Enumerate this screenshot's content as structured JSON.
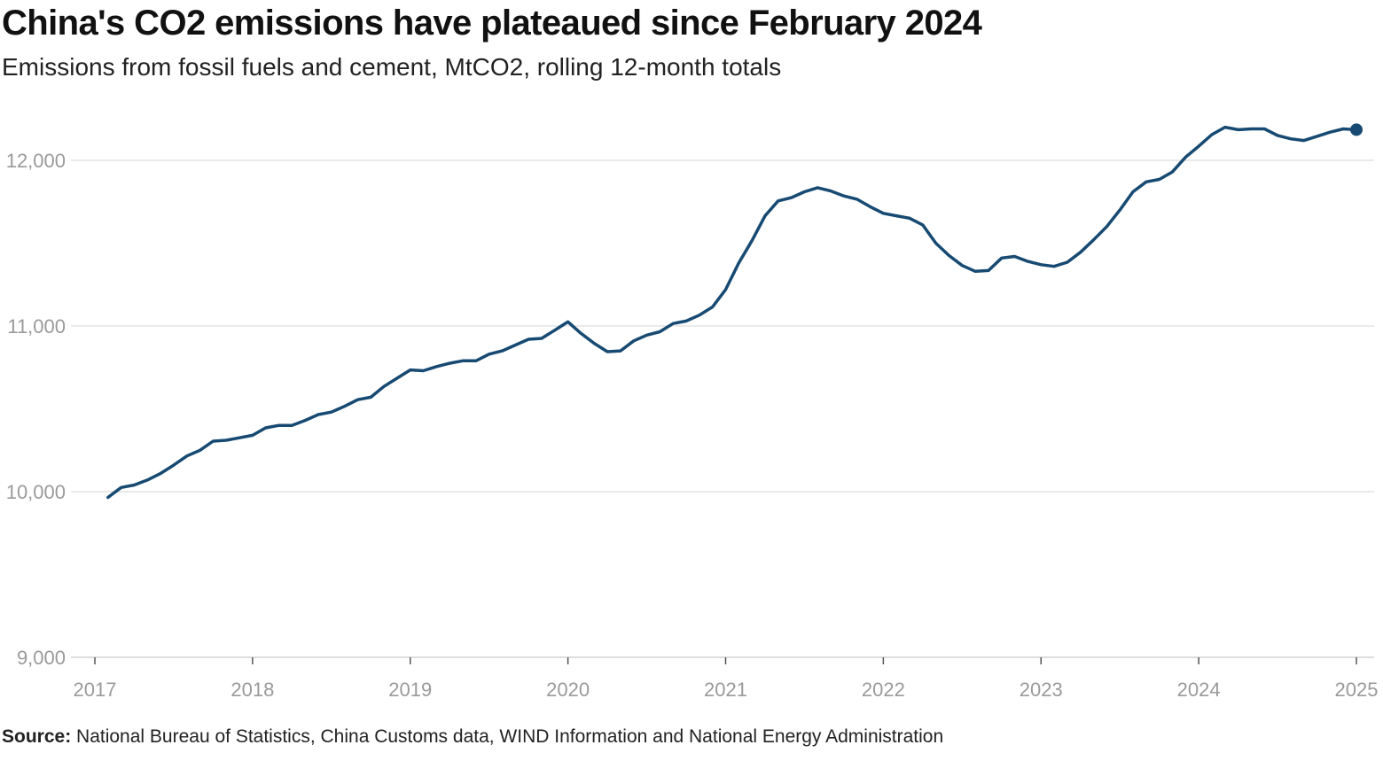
{
  "colors": {
    "series": "#174a72",
    "grid": "#e4e4e4",
    "tick_text": "#9a9a9a"
  },
  "source": {
    "label": "Source:",
    "text": "National Bureau of Statistics, China Customs data, WIND Information and National Energy Administration"
  },
  "chart_data": {
    "type": "line",
    "title": "China's CO2 emissions have plateaued since February 2024",
    "subtitle": "Emissions from fossil fuels and cement, MtCO2, rolling 12-month totals",
    "xlabel": "",
    "ylabel": "",
    "xlim": [
      2017,
      2025
    ],
    "ylim": [
      9000,
      12300
    ],
    "x_ticks": [
      2017,
      2018,
      2019,
      2020,
      2021,
      2022,
      2023,
      2024,
      2025
    ],
    "x_tick_labels": [
      "2017",
      "2018",
      "2019",
      "2020",
      "2021",
      "2022",
      "2023",
      "2024",
      "2025"
    ],
    "y_ticks": [
      9000,
      10000,
      11000,
      12000
    ],
    "y_tick_labels": [
      "9,000",
      "10,000",
      "11,000",
      "12,000"
    ],
    "grid": true,
    "legend": "none",
    "end_marker": true,
    "series": [
      {
        "name": "China CO2 emissions",
        "x": [
          2017.083,
          2017.167,
          2017.25,
          2017.333,
          2017.417,
          2017.5,
          2017.583,
          2017.667,
          2017.75,
          2017.833,
          2017.917,
          2018.0,
          2018.083,
          2018.167,
          2018.25,
          2018.333,
          2018.417,
          2018.5,
          2018.583,
          2018.667,
          2018.75,
          2018.833,
          2018.917,
          2019.0,
          2019.083,
          2019.167,
          2019.25,
          2019.333,
          2019.417,
          2019.5,
          2019.583,
          2019.667,
          2019.75,
          2019.833,
          2019.917,
          2020.0,
          2020.083,
          2020.167,
          2020.25,
          2020.333,
          2020.417,
          2020.5,
          2020.583,
          2020.667,
          2020.75,
          2020.833,
          2020.917,
          2021.0,
          2021.083,
          2021.167,
          2021.25,
          2021.333,
          2021.417,
          2021.5,
          2021.583,
          2021.667,
          2021.75,
          2021.833,
          2021.917,
          2022.0,
          2022.083,
          2022.167,
          2022.25,
          2022.333,
          2022.417,
          2022.5,
          2022.583,
          2022.667,
          2022.75,
          2022.833,
          2022.917,
          2023.0,
          2023.083,
          2023.167,
          2023.25,
          2023.333,
          2023.417,
          2023.5,
          2023.583,
          2023.667,
          2023.75,
          2023.833,
          2023.917,
          2024.0,
          2024.083,
          2024.167,
          2024.25,
          2024.333,
          2024.417,
          2024.5,
          2024.583,
          2024.667,
          2024.75,
          2024.833,
          2024.917,
          2025.0
        ],
        "values": [
          9965,
          10025,
          10040,
          10070,
          10110,
          10160,
          10215,
          10250,
          10305,
          10310,
          10325,
          10340,
          10385,
          10400,
          10400,
          10430,
          10465,
          10480,
          10515,
          10555,
          10570,
          10635,
          10685,
          10735,
          10730,
          10755,
          10775,
          10790,
          10790,
          10830,
          10850,
          10885,
          10920,
          10925,
          10975,
          11025,
          10955,
          10895,
          10845,
          10850,
          10910,
          10945,
          10965,
          11015,
          11030,
          11065,
          11115,
          11220,
          11380,
          11515,
          11665,
          11755,
          11775,
          11810,
          11835,
          11815,
          11785,
          11765,
          11720,
          11680,
          11665,
          11650,
          11610,
          11500,
          11425,
          11365,
          11330,
          11335,
          11410,
          11420,
          11390,
          11370,
          11360,
          11385,
          11445,
          11520,
          11600,
          11700,
          11810,
          11870,
          11885,
          11930,
          12020,
          12085,
          12155,
          12200,
          12185,
          12190,
          12190,
          12150,
          12130,
          12120,
          12145,
          12170,
          12190,
          12185
        ]
      }
    ]
  }
}
